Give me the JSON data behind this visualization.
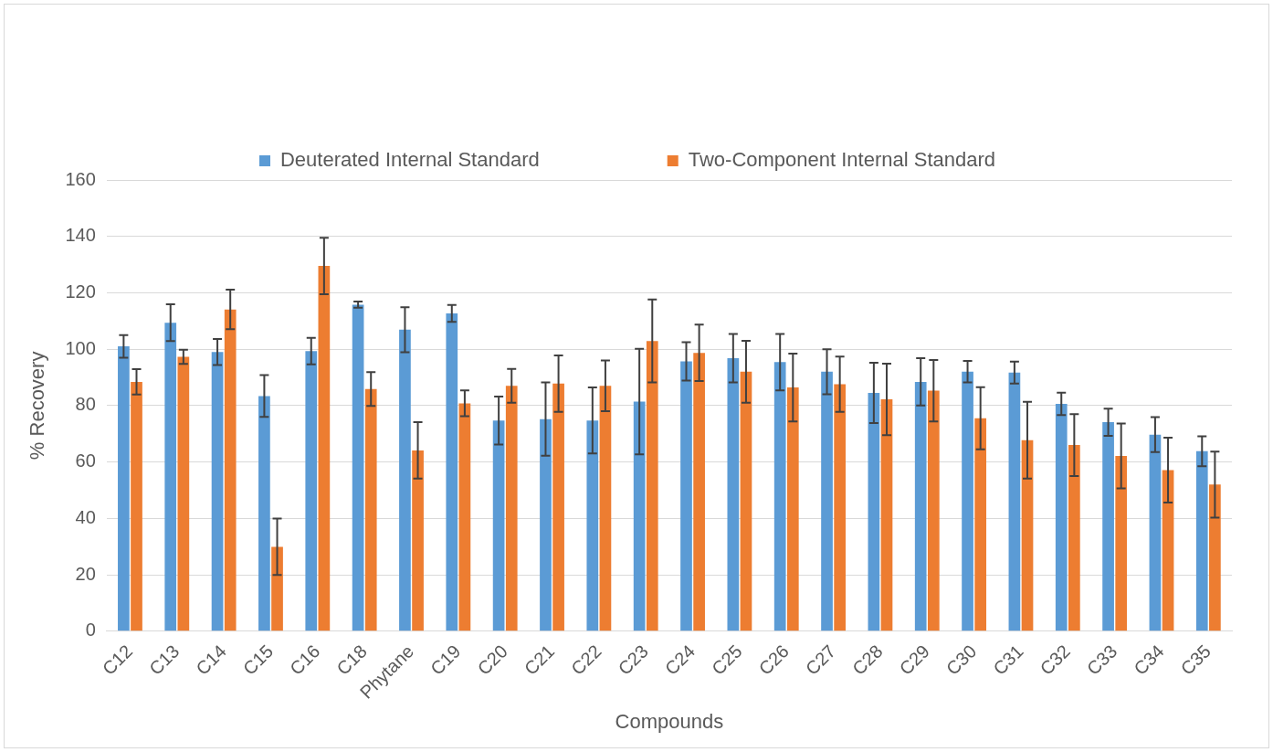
{
  "chart_data": {
    "type": "bar",
    "xlabel": "Compounds",
    "ylabel": "% Recovery",
    "categories": [
      "C12",
      "C13",
      "C14",
      "C15",
      "C16",
      "C18",
      "Phytane",
      "C19",
      "C20",
      "C21",
      "C22",
      "C23",
      "C24",
      "C25",
      "C26",
      "C27",
      "C28",
      "C29",
      "C30",
      "C31",
      "C32",
      "C33",
      "C34",
      "C35"
    ],
    "series": [
      {
        "name": "Deuterated Internal Standard",
        "color": "#5b9bd5",
        "values": [
          101,
          109.4,
          99,
          83.4,
          99.3,
          115.8,
          106.9,
          112.7,
          74.7,
          75.2,
          74.7,
          81.4,
          95.7,
          96.8,
          95.4,
          92,
          84.5,
          88.4,
          92,
          91.7,
          80.6,
          74.1,
          69.7,
          63.8
        ],
        "errors": [
          4,
          6.5,
          4.6,
          7.4,
          4.7,
          1.1,
          8,
          3,
          8.5,
          13,
          11.7,
          18.7,
          6.8,
          8.6,
          10,
          8,
          10.7,
          8.4,
          3.8,
          3.9,
          4,
          4.8,
          6.2,
          5.3
        ]
      },
      {
        "name": "Two-Component Internal Standard",
        "color": "#ed7d31",
        "values": [
          88.4,
          97.3,
          114.1,
          29.9,
          129.5,
          85.9,
          64.1,
          80.8,
          87,
          87.8,
          87,
          102.9,
          98.7,
          92,
          86.4,
          87.6,
          82.2,
          85.3,
          75.5,
          67.7,
          66,
          62.1,
          57.1,
          52
        ],
        "errors": [
          4.5,
          2.5,
          7,
          10,
          10,
          6,
          10,
          4.6,
          6,
          10,
          9,
          14.7,
          10,
          11,
          12,
          9.8,
          12.7,
          10.9,
          11,
          13.6,
          11,
          11.5,
          11.5,
          11.7
        ]
      }
    ],
    "ylim": [
      0,
      160
    ],
    "yticks": [
      0,
      20,
      40,
      60,
      80,
      100,
      120,
      140,
      160
    ],
    "grid": "y",
    "legend": "top"
  }
}
